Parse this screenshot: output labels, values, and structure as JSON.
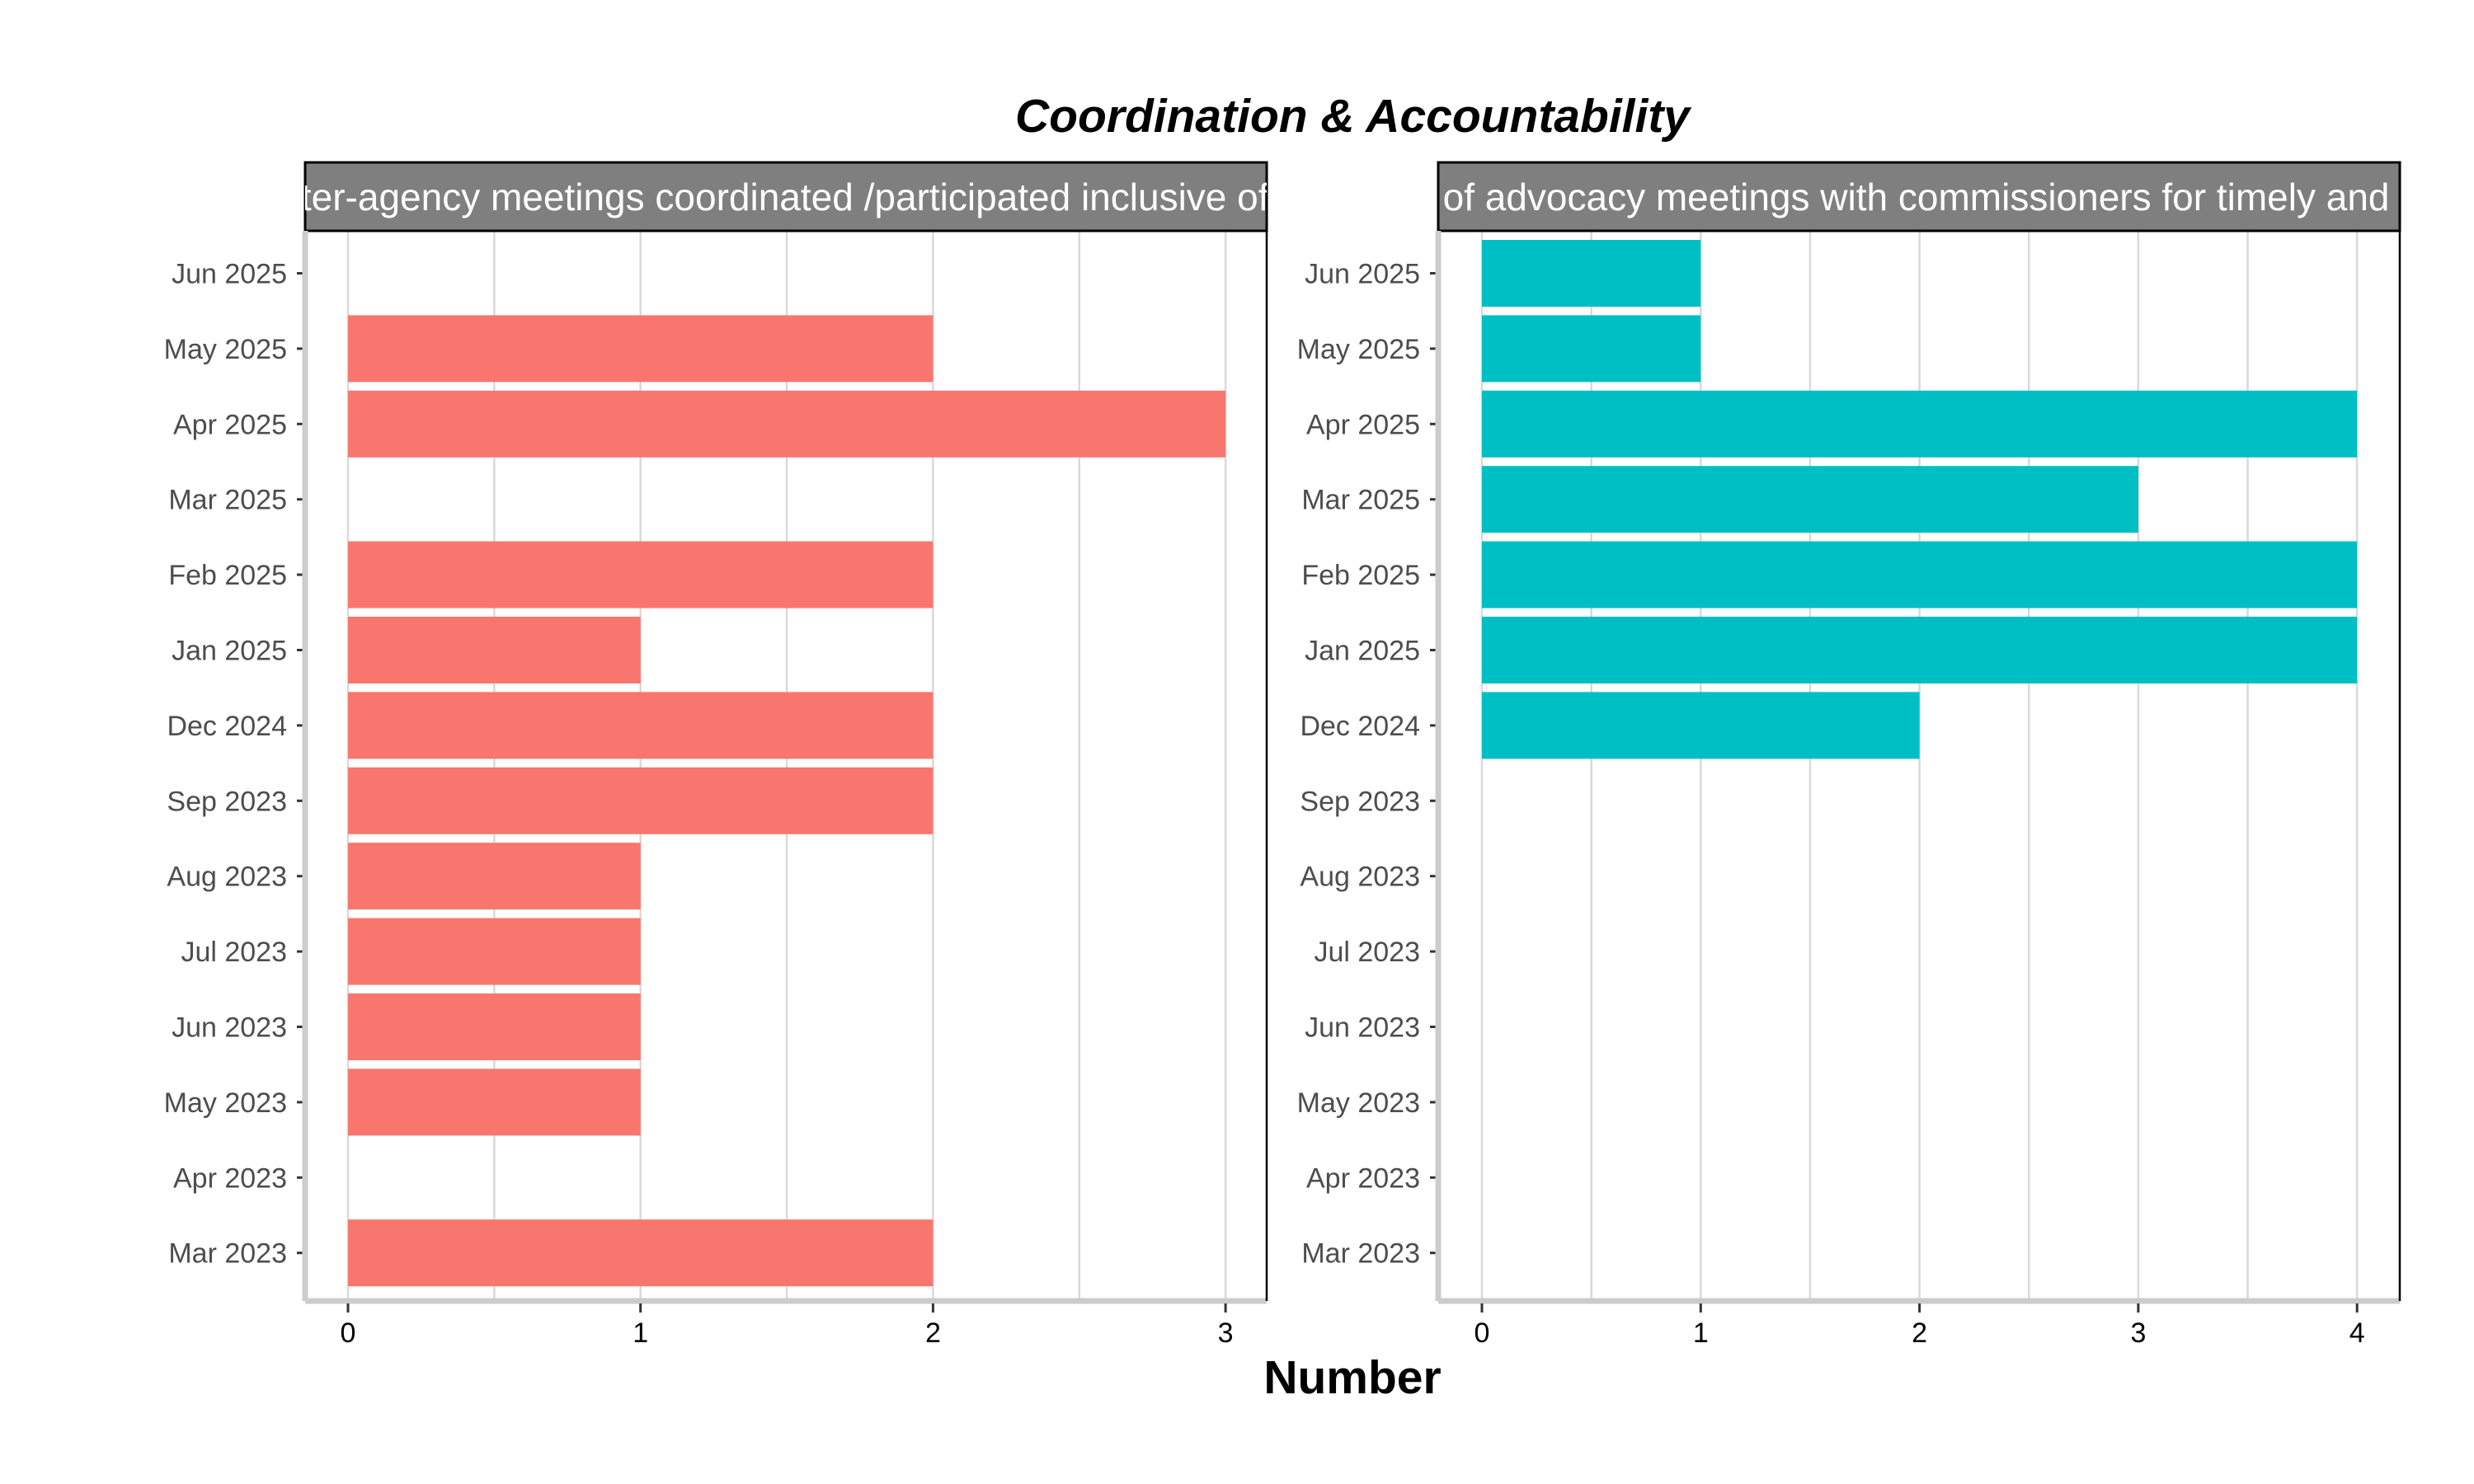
{
  "chart_data": {
    "type": "bar",
    "orientation": "horizontal",
    "title": "Coordination & Accountability",
    "xlabel": "Number",
    "categories": [
      "Mar 2023",
      "Apr 2023",
      "May 2023",
      "Jun 2023",
      "Jul 2023",
      "Aug 2023",
      "Sep 2023",
      "Dec 2024",
      "Jan 2025",
      "Feb 2025",
      "Mar 2025",
      "Apr 2025",
      "May 2025",
      "Jun 2025"
    ],
    "grid": true,
    "legend": "none",
    "panels": [
      {
        "strip_label": "Number of inter-agency meetings coordinated /participated inclusive of all regarding",
        "color": "#F8766D",
        "xlim": [
          0,
          3
        ],
        "xticks": [
          0,
          1,
          2,
          3
        ],
        "values": [
          2,
          0,
          1,
          1,
          1,
          1,
          2,
          2,
          1,
          2,
          0,
          3,
          2,
          0
        ]
      },
      {
        "strip_label": "Number of advocacy meetings with commissioners for timely and effective",
        "color": "#00BFC4",
        "xlim": [
          0,
          4
        ],
        "xticks": [
          0,
          1,
          2,
          3,
          4
        ],
        "values": [
          0,
          0,
          0,
          0,
          0,
          0,
          0,
          2,
          4,
          4,
          3,
          4,
          1,
          1
        ]
      }
    ]
  }
}
